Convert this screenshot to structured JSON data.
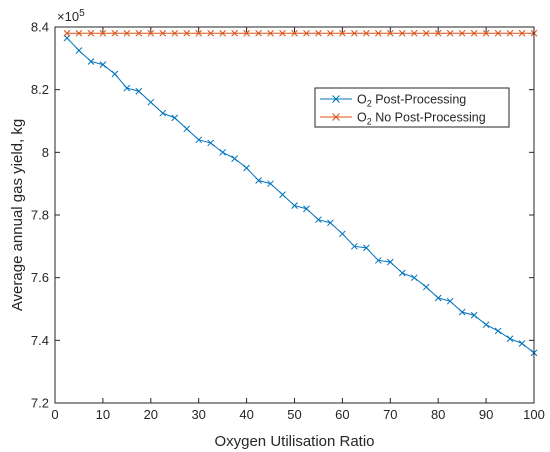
{
  "chart_data": {
    "type": "line",
    "title": "",
    "xlabel": "Oxygen Utilisation Ratio",
    "ylabel": "Average annual gas yield, kg",
    "xlim": [
      0,
      100
    ],
    "ylim": [
      7.2,
      8.4
    ],
    "y_multiplier_label": "×10",
    "y_multiplier_exp": "5",
    "x_ticks": [
      0,
      10,
      20,
      30,
      40,
      50,
      60,
      70,
      80,
      90,
      100
    ],
    "x_tick_labels": [
      "0",
      "10",
      "20",
      "30",
      "40",
      "50",
      "60",
      "70",
      "80",
      "90",
      "100"
    ],
    "y_ticks": [
      7.2,
      7.4,
      7.6,
      7.8,
      8.0,
      8.2,
      8.4
    ],
    "y_tick_labels": [
      "7.2",
      "7.4",
      "7.6",
      "7.8",
      "8",
      "8.2",
      "8.4"
    ],
    "grid": false,
    "legend_position": "upper-right (inside)",
    "x": [
      2.5,
      5,
      7.5,
      10,
      12.5,
      15,
      17.5,
      20,
      22.5,
      25,
      27.5,
      30,
      32.5,
      35,
      37.5,
      40,
      42.5,
      45,
      47.5,
      50,
      52.5,
      55,
      57.5,
      60,
      62.5,
      65,
      67.5,
      70,
      72.5,
      75,
      77.5,
      80,
      82.5,
      85,
      87.5,
      90,
      92.5,
      95,
      97.5,
      100
    ],
    "series": [
      {
        "name_prefix": "O",
        "name_sub": "2",
        "name_suffix": " Post-Processing",
        "color": "#0072BD",
        "marker": "x",
        "values": [
          8.365,
          8.325,
          8.29,
          8.28,
          8.25,
          8.205,
          8.195,
          8.16,
          8.125,
          8.11,
          8.075,
          8.04,
          8.03,
          8.0,
          7.98,
          7.95,
          7.91,
          7.9,
          7.865,
          7.83,
          7.82,
          7.785,
          7.775,
          7.74,
          7.7,
          7.695,
          7.655,
          7.65,
          7.615,
          7.6,
          7.57,
          7.535,
          7.525,
          7.49,
          7.48,
          7.45,
          7.43,
          7.405,
          7.39,
          7.36
        ]
      },
      {
        "name_prefix": "O",
        "name_sub": "2",
        "name_suffix": " No Post-Processing",
        "color": "#D95319",
        "marker": "x",
        "values": [
          8.38,
          8.38,
          8.38,
          8.38,
          8.38,
          8.38,
          8.38,
          8.38,
          8.38,
          8.38,
          8.38,
          8.38,
          8.38,
          8.38,
          8.38,
          8.38,
          8.38,
          8.38,
          8.38,
          8.38,
          8.38,
          8.38,
          8.38,
          8.38,
          8.38,
          8.38,
          8.38,
          8.38,
          8.38,
          8.38,
          8.38,
          8.38,
          8.38,
          8.38,
          8.38,
          8.38,
          8.38,
          8.38,
          8.38,
          8.38
        ]
      }
    ]
  }
}
